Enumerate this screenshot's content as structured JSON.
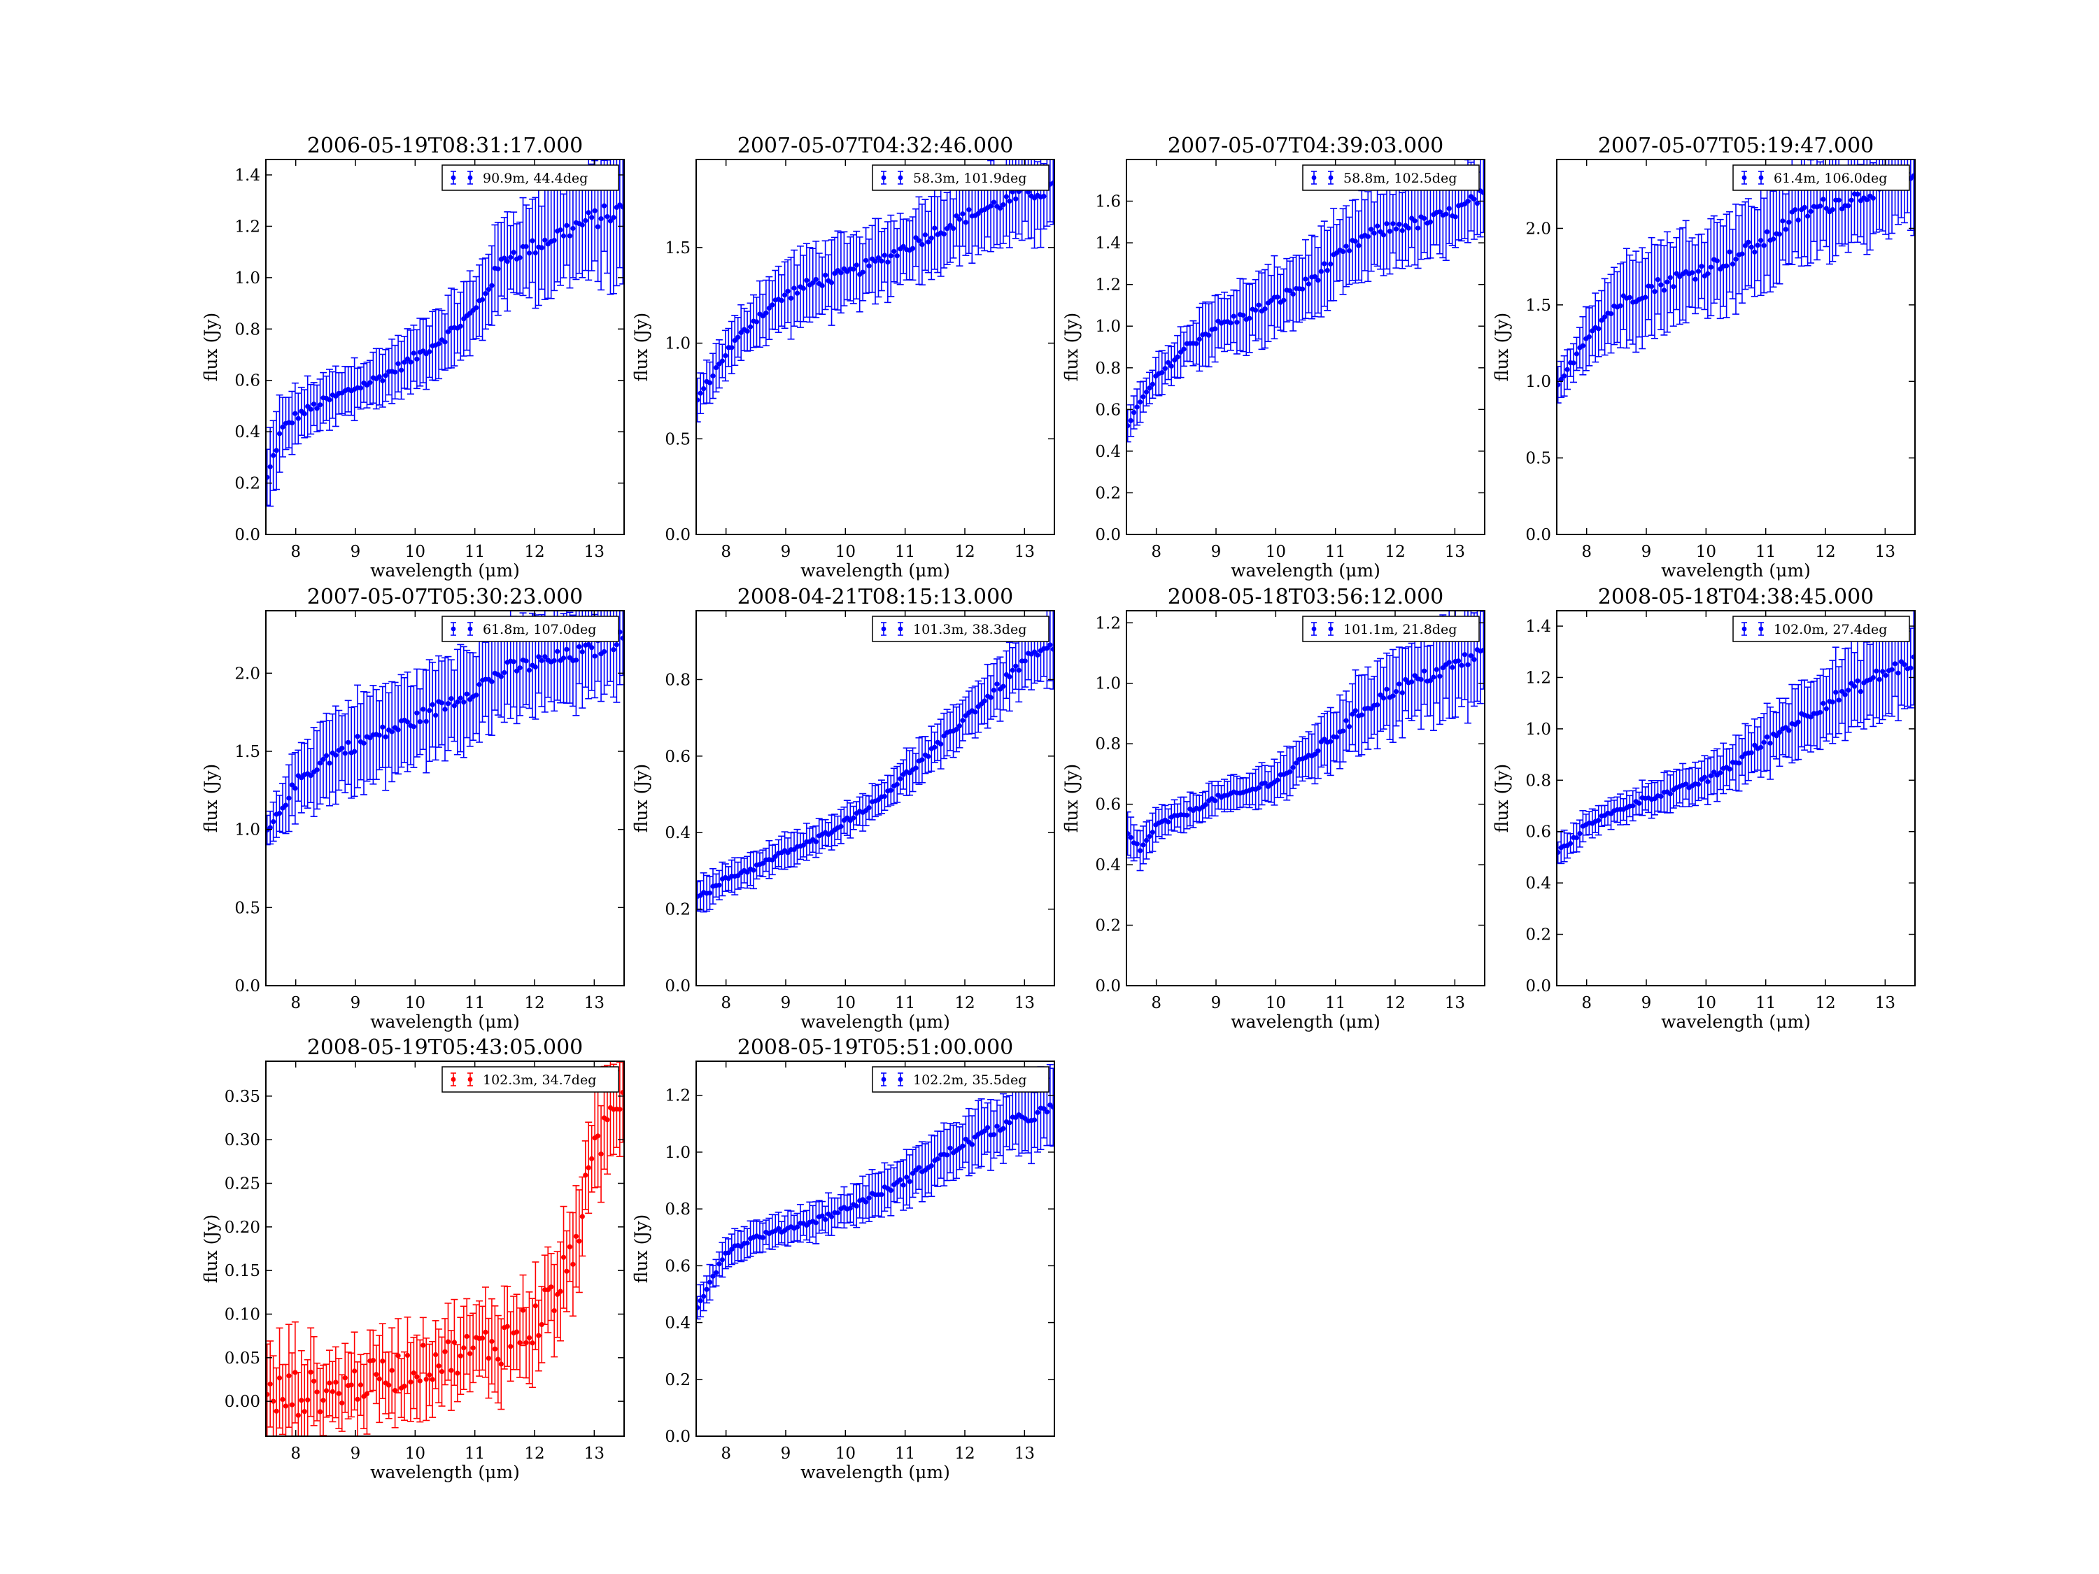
{
  "figure": {
    "background": "#ffffff"
  },
  "chart_data": [
    {
      "type": "scatter",
      "title": "2006-05-19T08:31:17.000",
      "xlabel": "wavelength (μm)",
      "ylabel": "flux (Jy)",
      "xlim": [
        7.5,
        13.5
      ],
      "ylim": [
        0.0,
        1.46
      ],
      "xticks": [
        8,
        9,
        10,
        11,
        12,
        13
      ],
      "yticks": [
        0.0,
        0.2,
        0.4,
        0.6,
        0.8,
        1.0,
        1.2,
        1.4
      ],
      "series": [
        {
          "name": "90.9m, 44.4deg",
          "color": "#0000ff",
          "anchors": [
            [
              7.5,
              0.2
            ],
            [
              7.75,
              0.4
            ],
            [
              8.0,
              0.46
            ],
            [
              8.5,
              0.52
            ],
            [
              9.0,
              0.57
            ],
            [
              9.5,
              0.62
            ],
            [
              10.0,
              0.69
            ],
            [
              10.5,
              0.77
            ],
            [
              11.0,
              0.87
            ],
            [
              11.5,
              1.08
            ],
            [
              12.0,
              1.12
            ],
            [
              12.5,
              1.18
            ],
            [
              13.0,
              1.23
            ],
            [
              13.45,
              1.26
            ]
          ],
          "err": [
            0.12,
            0.13,
            0.1,
            0.1,
            0.1,
            0.1,
            0.11,
            0.12,
            0.14,
            0.16,
            0.18,
            0.2,
            0.22,
            0.25
          ]
        }
      ]
    },
    {
      "type": "scatter",
      "title": "2007-05-07T04:32:46.000",
      "xlabel": "wavelength (μm)",
      "ylabel": "flux (Jy)",
      "xlim": [
        7.5,
        13.5
      ],
      "ylim": [
        0.0,
        1.96
      ],
      "xticks": [
        8,
        9,
        10,
        11,
        12,
        13
      ],
      "yticks": [
        0.0,
        0.5,
        1.0,
        1.5
      ],
      "series": [
        {
          "name": "58.3m, 101.9deg",
          "color": "#0000ff",
          "anchors": [
            [
              7.5,
              0.7
            ],
            [
              7.75,
              0.82
            ],
            [
              8.0,
              0.95
            ],
            [
              8.5,
              1.13
            ],
            [
              9.0,
              1.25
            ],
            [
              9.5,
              1.32
            ],
            [
              10.0,
              1.36
            ],
            [
              10.5,
              1.42
            ],
            [
              11.0,
              1.5
            ],
            [
              11.5,
              1.58
            ],
            [
              12.0,
              1.66
            ],
            [
              12.5,
              1.72
            ],
            [
              13.0,
              1.78
            ],
            [
              13.45,
              1.8
            ]
          ],
          "err": [
            0.1,
            0.1,
            0.11,
            0.14,
            0.17,
            0.18,
            0.18,
            0.18,
            0.18,
            0.2,
            0.2,
            0.2,
            0.22,
            0.23
          ]
        }
      ]
    },
    {
      "type": "scatter",
      "title": "2007-05-07T04:39:03.000",
      "xlabel": "wavelength (μm)",
      "ylabel": "flux (Jy)",
      "xlim": [
        7.5,
        13.5
      ],
      "ylim": [
        0.0,
        1.8
      ],
      "xticks": [
        8,
        9,
        10,
        11,
        12,
        13
      ],
      "yticks": [
        0.0,
        0.2,
        0.4,
        0.6,
        0.8,
        1.0,
        1.2,
        1.4,
        1.6
      ],
      "series": [
        {
          "name": "58.8m, 102.5deg",
          "color": "#0000ff",
          "anchors": [
            [
              7.5,
              0.52
            ],
            [
              7.75,
              0.64
            ],
            [
              8.0,
              0.75
            ],
            [
              8.5,
              0.9
            ],
            [
              9.0,
              1.0
            ],
            [
              9.5,
              1.05
            ],
            [
              10.0,
              1.12
            ],
            [
              10.5,
              1.2
            ],
            [
              11.0,
              1.32
            ],
            [
              11.5,
              1.43
            ],
            [
              12.0,
              1.48
            ],
            [
              12.5,
              1.5
            ],
            [
              13.0,
              1.55
            ],
            [
              13.45,
              1.62
            ]
          ],
          "err": [
            0.08,
            0.08,
            0.09,
            0.11,
            0.14,
            0.15,
            0.16,
            0.17,
            0.18,
            0.18,
            0.18,
            0.18,
            0.18,
            0.2
          ]
        }
      ]
    },
    {
      "type": "scatter",
      "title": "2007-05-07T05:19:47.000",
      "xlabel": "wavelength (μm)",
      "ylabel": "flux (Jy)",
      "xlim": [
        7.5,
        13.5
      ],
      "ylim": [
        0.0,
        2.45
      ],
      "xticks": [
        8,
        9,
        10,
        11,
        12,
        13
      ],
      "yticks": [
        0.0,
        0.5,
        1.0,
        1.5,
        2.0
      ],
      "series": [
        {
          "name": "61.4m, 106.0deg",
          "color": "#0000ff",
          "anchors": [
            [
              7.5,
              0.95
            ],
            [
              7.75,
              1.12
            ],
            [
              8.0,
              1.3
            ],
            [
              8.5,
              1.5
            ],
            [
              9.0,
              1.6
            ],
            [
              9.5,
              1.67
            ],
            [
              10.0,
              1.74
            ],
            [
              10.5,
              1.82
            ],
            [
              11.0,
              1.92
            ],
            [
              11.5,
              2.08
            ],
            [
              12.0,
              2.15
            ],
            [
              12.5,
              2.2
            ],
            [
              13.0,
              2.28
            ],
            [
              13.45,
              2.32
            ]
          ],
          "err": [
            0.1,
            0.12,
            0.18,
            0.26,
            0.28,
            0.28,
            0.28,
            0.3,
            0.3,
            0.3,
            0.3,
            0.3,
            0.3,
            0.32
          ]
        }
      ]
    },
    {
      "type": "scatter",
      "title": "2007-05-07T05:30:23.000",
      "xlabel": "wavelength (μm)",
      "ylabel": "flux (Jy)",
      "xlim": [
        7.5,
        13.5
      ],
      "ylim": [
        0.0,
        2.4
      ],
      "xticks": [
        8,
        9,
        10,
        11,
        12,
        13
      ],
      "yticks": [
        0.0,
        0.5,
        1.0,
        1.5,
        2.0
      ],
      "series": [
        {
          "name": "61.8m, 107.0deg",
          "color": "#0000ff",
          "anchors": [
            [
              7.5,
              0.97
            ],
            [
              7.75,
              1.12
            ],
            [
              8.0,
              1.3
            ],
            [
              8.5,
              1.45
            ],
            [
              9.0,
              1.55
            ],
            [
              9.5,
              1.62
            ],
            [
              10.0,
              1.7
            ],
            [
              10.5,
              1.8
            ],
            [
              11.0,
              1.9
            ],
            [
              11.5,
              2.02
            ],
            [
              12.0,
              2.06
            ],
            [
              12.5,
              2.1
            ],
            [
              13.0,
              2.15
            ],
            [
              13.45,
              2.22
            ]
          ],
          "err": [
            0.1,
            0.14,
            0.2,
            0.25,
            0.28,
            0.28,
            0.28,
            0.28,
            0.3,
            0.3,
            0.3,
            0.3,
            0.3,
            0.3
          ]
        }
      ]
    },
    {
      "type": "scatter",
      "title": "2008-04-21T08:15:13.000",
      "xlabel": "wavelength (μm)",
      "ylabel": "flux (Jy)",
      "xlim": [
        7.5,
        13.5
      ],
      "ylim": [
        0.0,
        0.98
      ],
      "xticks": [
        8,
        9,
        10,
        11,
        12,
        13
      ],
      "yticks": [
        0.0,
        0.2,
        0.4,
        0.6,
        0.8
      ],
      "series": [
        {
          "name": "101.3m, 38.3deg",
          "color": "#0000ff",
          "anchors": [
            [
              7.5,
              0.24
            ],
            [
              7.75,
              0.25
            ],
            [
              8.0,
              0.28
            ],
            [
              8.5,
              0.31
            ],
            [
              9.0,
              0.35
            ],
            [
              9.5,
              0.38
            ],
            [
              10.0,
              0.43
            ],
            [
              10.5,
              0.48
            ],
            [
              11.0,
              0.55
            ],
            [
              11.5,
              0.62
            ],
            [
              12.0,
              0.7
            ],
            [
              12.5,
              0.77
            ],
            [
              13.0,
              0.85
            ],
            [
              13.45,
              0.88
            ]
          ],
          "err": [
            0.05,
            0.04,
            0.04,
            0.04,
            0.04,
            0.04,
            0.04,
            0.04,
            0.05,
            0.05,
            0.06,
            0.07,
            0.08,
            0.1
          ]
        }
      ]
    },
    {
      "type": "scatter",
      "title": "2008-05-18T03:56:12.000",
      "xlabel": "wavelength (μm)",
      "ylabel": "flux (Jy)",
      "xlim": [
        7.5,
        13.5
      ],
      "ylim": [
        0.0,
        1.24
      ],
      "xticks": [
        8,
        9,
        10,
        11,
        12,
        13
      ],
      "yticks": [
        0.0,
        0.2,
        0.4,
        0.6,
        0.8,
        1.0,
        1.2
      ],
      "series": [
        {
          "name": "101.1m, 21.8deg",
          "color": "#0000ff",
          "anchors": [
            [
              7.5,
              0.5
            ],
            [
              7.75,
              0.45
            ],
            [
              8.0,
              0.53
            ],
            [
              8.5,
              0.57
            ],
            [
              9.0,
              0.62
            ],
            [
              9.5,
              0.64
            ],
            [
              10.0,
              0.68
            ],
            [
              10.5,
              0.75
            ],
            [
              11.0,
              0.83
            ],
            [
              11.5,
              0.92
            ],
            [
              12.0,
              0.98
            ],
            [
              12.5,
              1.02
            ],
            [
              13.0,
              1.06
            ],
            [
              13.45,
              1.1
            ]
          ],
          "err": [
            0.06,
            0.06,
            0.05,
            0.05,
            0.05,
            0.05,
            0.07,
            0.08,
            0.1,
            0.12,
            0.13,
            0.14,
            0.15,
            0.16
          ]
        }
      ]
    },
    {
      "type": "scatter",
      "title": "2008-05-18T04:38:45.000",
      "xlabel": "wavelength (μm)",
      "ylabel": "flux (Jy)",
      "xlim": [
        7.5,
        13.5
      ],
      "ylim": [
        0.0,
        1.46
      ],
      "xticks": [
        8,
        9,
        10,
        11,
        12,
        13
      ],
      "yticks": [
        0.0,
        0.2,
        0.4,
        0.6,
        0.8,
        1.0,
        1.2,
        1.4
      ],
      "series": [
        {
          "name": "102.0m, 27.4deg",
          "color": "#0000ff",
          "anchors": [
            [
              7.5,
              0.52
            ],
            [
              7.75,
              0.56
            ],
            [
              8.0,
              0.63
            ],
            [
              8.5,
              0.68
            ],
            [
              9.0,
              0.73
            ],
            [
              9.5,
              0.76
            ],
            [
              10.0,
              0.8
            ],
            [
              10.5,
              0.87
            ],
            [
              11.0,
              0.95
            ],
            [
              11.5,
              1.03
            ],
            [
              12.0,
              1.1
            ],
            [
              12.5,
              1.16
            ],
            [
              13.0,
              1.22
            ],
            [
              13.45,
              1.26
            ]
          ],
          "err": [
            0.05,
            0.05,
            0.05,
            0.05,
            0.06,
            0.07,
            0.08,
            0.09,
            0.11,
            0.13,
            0.14,
            0.15,
            0.16,
            0.17
          ]
        }
      ]
    },
    {
      "type": "scatter",
      "title": "2008-05-19T05:43:05.000",
      "xlabel": "wavelength (μm)",
      "ylabel": "flux (Jy)",
      "xlim": [
        7.5,
        13.5
      ],
      "ylim": [
        -0.04,
        0.39
      ],
      "xticks": [
        8,
        9,
        10,
        11,
        12,
        13
      ],
      "yticks": [
        0.0,
        0.05,
        0.1,
        0.15,
        0.2,
        0.25,
        0.3,
        0.35
      ],
      "series": [
        {
          "name": "102.3m, 34.7deg",
          "color": "#ff0000",
          "anchors": [
            [
              7.5,
              0.0
            ],
            [
              8.0,
              0.01
            ],
            [
              8.5,
              0.01
            ],
            [
              9.0,
              0.02
            ],
            [
              9.5,
              0.03
            ],
            [
              10.0,
              0.04
            ],
            [
              10.5,
              0.05
            ],
            [
              11.0,
              0.06
            ],
            [
              11.5,
              0.07
            ],
            [
              12.0,
              0.09
            ],
            [
              12.5,
              0.14
            ],
            [
              12.8,
              0.22
            ],
            [
              13.1,
              0.3
            ],
            [
              13.45,
              0.36
            ]
          ],
          "err": [
            0.05,
            0.05,
            0.04,
            0.04,
            0.04,
            0.04,
            0.04,
            0.04,
            0.05,
            0.05,
            0.05,
            0.05,
            0.05,
            0.05
          ]
        }
      ]
    },
    {
      "type": "scatter",
      "title": "2008-05-19T05:51:00.000",
      "xlabel": "wavelength (μm)",
      "ylabel": "flux (Jy)",
      "xlim": [
        7.5,
        13.5
      ],
      "ylim": [
        0.0,
        1.32
      ],
      "xticks": [
        8,
        9,
        10,
        11,
        12,
        13
      ],
      "yticks": [
        0.0,
        0.2,
        0.4,
        0.6,
        0.8,
        1.0,
        1.2
      ],
      "series": [
        {
          "name": "102.2m, 35.5deg",
          "color": "#0000ff",
          "anchors": [
            [
              7.5,
              0.45
            ],
            [
              7.75,
              0.55
            ],
            [
              8.0,
              0.65
            ],
            [
              8.5,
              0.7
            ],
            [
              9.0,
              0.73
            ],
            [
              9.5,
              0.76
            ],
            [
              10.0,
              0.8
            ],
            [
              10.5,
              0.85
            ],
            [
              11.0,
              0.9
            ],
            [
              11.5,
              0.97
            ],
            [
              12.0,
              1.03
            ],
            [
              12.5,
              1.08
            ],
            [
              13.0,
              1.12
            ],
            [
              13.45,
              1.15
            ]
          ],
          "err": [
            0.05,
            0.05,
            0.05,
            0.05,
            0.05,
            0.06,
            0.06,
            0.07,
            0.08,
            0.09,
            0.1,
            0.11,
            0.12,
            0.13
          ]
        }
      ]
    }
  ]
}
